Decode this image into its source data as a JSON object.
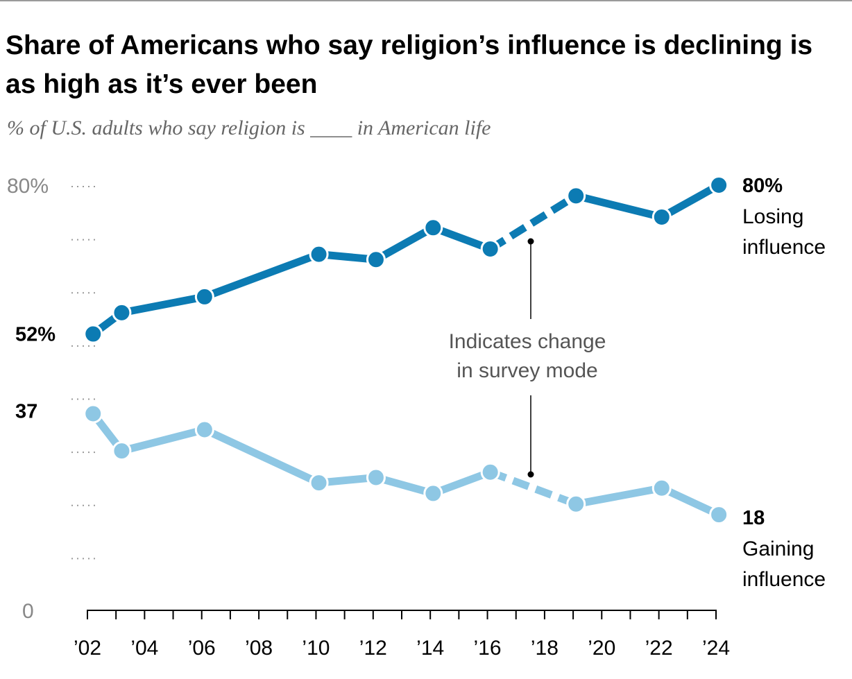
{
  "chart_data": {
    "type": "line",
    "title": "Share of Americans who say religion’s influence is declining is as high as it’s ever been",
    "subtitle": "% of U.S. adults who say religion is ____ in American life",
    "x_tick_labels": [
      "’02",
      "’04",
      "’06",
      "’08",
      "’10",
      "’12",
      "’14",
      "’16",
      "’18",
      "’20",
      "’22",
      "’24"
    ],
    "x_ticks": [
      2002,
      2004,
      2006,
      2008,
      2010,
      2012,
      2014,
      2016,
      2018,
      2020,
      2022,
      2024
    ],
    "xlim": [
      2002,
      2024
    ],
    "ylim": [
      0,
      80
    ],
    "y_tick_labels": [
      "0",
      "80%"
    ],
    "y_ticks": [
      0,
      80
    ],
    "gridlines": "dotted",
    "series": [
      {
        "name": "Losing influence",
        "color": "#0c7bb3",
        "start_label": "52%",
        "end_label": "80%",
        "points": [
          {
            "x": 2002.2,
            "y": 52
          },
          {
            "x": 2003.2,
            "y": 56
          },
          {
            "x": 2006.1,
            "y": 59
          },
          {
            "x": 2010.1,
            "y": 67
          },
          {
            "x": 2012.1,
            "y": 66
          },
          {
            "x": 2014.1,
            "y": 72
          },
          {
            "x": 2016.1,
            "y": 68
          },
          {
            "x": 2019.1,
            "y": 78
          },
          {
            "x": 2022.1,
            "y": 74
          },
          {
            "x": 2024.1,
            "y": 80
          }
        ]
      },
      {
        "name": "Gaining influence",
        "color": "#8ec7e4",
        "start_label": "37",
        "end_label": "18",
        "points": [
          {
            "x": 2002.2,
            "y": 37
          },
          {
            "x": 2003.2,
            "y": 30
          },
          {
            "x": 2006.1,
            "y": 34
          },
          {
            "x": 2010.1,
            "y": 24
          },
          {
            "x": 2012.1,
            "y": 25
          },
          {
            "x": 2014.1,
            "y": 22
          },
          {
            "x": 2016.1,
            "y": 26
          },
          {
            "x": 2019.1,
            "y": 20
          },
          {
            "x": 2022.1,
            "y": 23
          },
          {
            "x": 2024.1,
            "y": 18
          }
        ]
      }
    ],
    "mode_change_between": [
      2016.1,
      2019.1
    ],
    "annotation": [
      "Indicates change",
      "in survey mode"
    ]
  }
}
